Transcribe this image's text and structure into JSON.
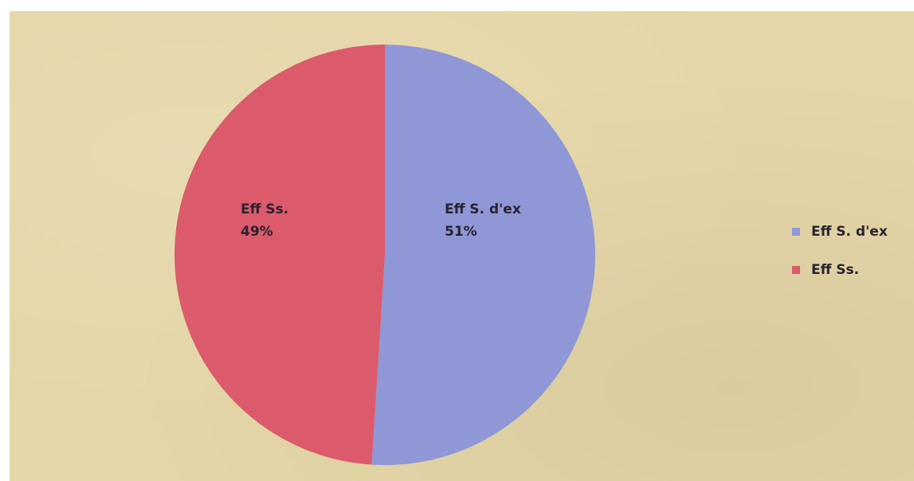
{
  "chart_data": {
    "type": "pie",
    "title": "",
    "slices": [
      {
        "label": "Eff S. d'ex",
        "value": 51,
        "value_label": "51%",
        "color": "#8f97d6"
      },
      {
        "label": "Eff Ss.",
        "value": 49,
        "value_label": "49%",
        "color": "#db5a6b"
      }
    ],
    "start": "12 o'clock",
    "direction": "clockwise",
    "legend_position": "right",
    "background_color": "#e5d6a7"
  }
}
